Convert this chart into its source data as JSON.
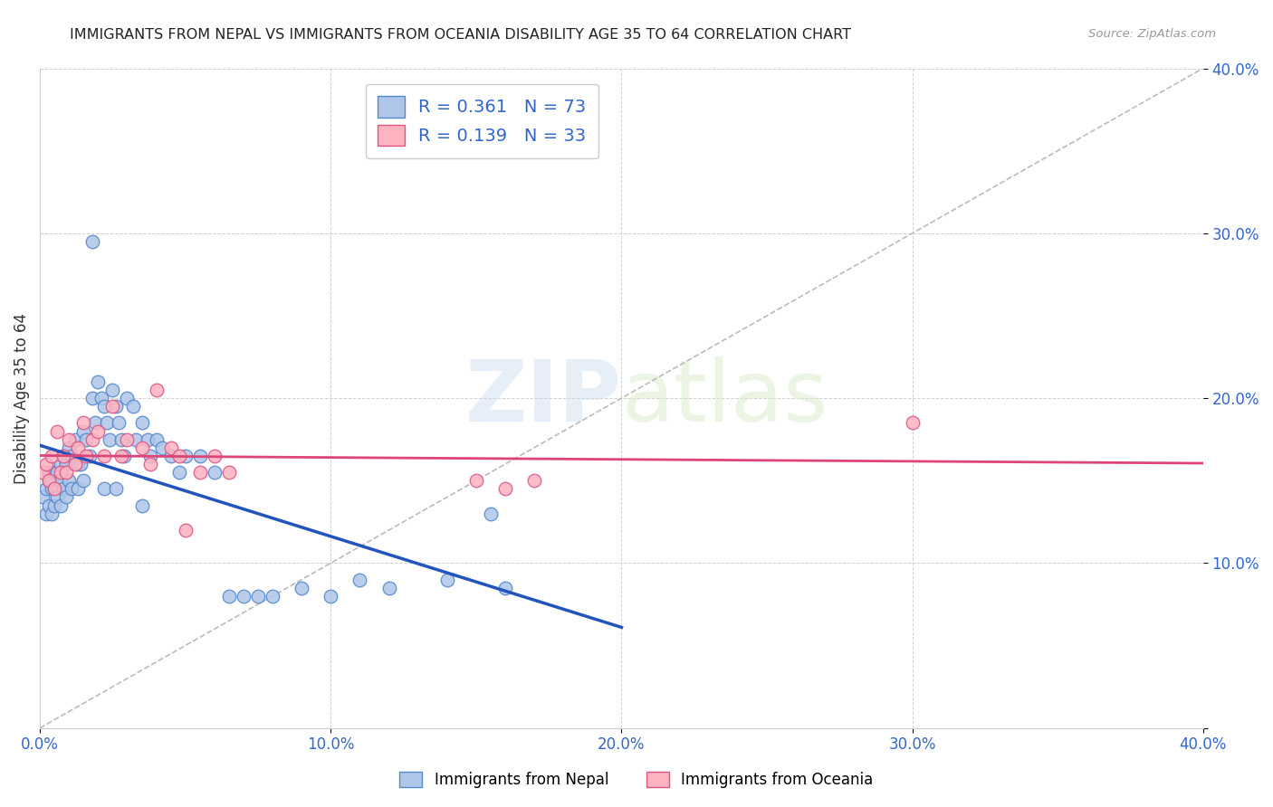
{
  "title": "IMMIGRANTS FROM NEPAL VS IMMIGRANTS FROM OCEANIA DISABILITY AGE 35 TO 64 CORRELATION CHART",
  "source": "Source: ZipAtlas.com",
  "ylabel": "Disability Age 35 to 64",
  "xlim": [
    0.0,
    0.4
  ],
  "ylim": [
    0.0,
    0.4
  ],
  "xticks": [
    0.0,
    0.1,
    0.2,
    0.3,
    0.4
  ],
  "yticks": [
    0.0,
    0.1,
    0.2,
    0.3,
    0.4
  ],
  "xticklabels": [
    "0.0%",
    "10.0%",
    "20.0%",
    "30.0%",
    "40.0%"
  ],
  "yticklabels": [
    "",
    "10.0%",
    "20.0%",
    "30.0%",
    "40.0%"
  ],
  "nepal_color": "#aec6e8",
  "nepal_edge_color": "#5588cc",
  "oceania_color": "#ffb3c1",
  "oceania_edge_color": "#e05580",
  "nepal_R": 0.361,
  "nepal_N": 73,
  "oceania_R": 0.139,
  "oceania_N": 33,
  "nepal_line_color": "#2255BB",
  "oceania_line_color": "#DD4477",
  "diagonal_color": "#BBBBBB",
  "watermark_zip": "ZIP",
  "watermark_atlas": "atlas",
  "legend_label_nepal": "Immigrants from Nepal",
  "legend_label_oceania": "Immigrants from Oceania",
  "nepal_x": [
    0.001,
    0.002,
    0.002,
    0.003,
    0.003,
    0.003,
    0.004,
    0.004,
    0.004,
    0.005,
    0.005,
    0.005,
    0.006,
    0.006,
    0.007,
    0.007,
    0.007,
    0.008,
    0.008,
    0.009,
    0.009,
    0.01,
    0.01,
    0.011,
    0.011,
    0.012,
    0.013,
    0.013,
    0.014,
    0.015,
    0.015,
    0.016,
    0.017,
    0.018,
    0.019,
    0.02,
    0.021,
    0.022,
    0.023,
    0.024,
    0.025,
    0.026,
    0.027,
    0.028,
    0.029,
    0.03,
    0.032,
    0.033,
    0.035,
    0.037,
    0.038,
    0.04,
    0.042,
    0.045,
    0.048,
    0.05,
    0.055,
    0.06,
    0.065,
    0.07,
    0.075,
    0.08,
    0.09,
    0.1,
    0.11,
    0.12,
    0.14,
    0.16,
    0.018,
    0.022,
    0.026,
    0.035,
    0.155
  ],
  "nepal_y": [
    0.14,
    0.145,
    0.13,
    0.15,
    0.155,
    0.135,
    0.145,
    0.15,
    0.13,
    0.155,
    0.145,
    0.135,
    0.155,
    0.14,
    0.16,
    0.15,
    0.135,
    0.165,
    0.145,
    0.16,
    0.14,
    0.17,
    0.15,
    0.165,
    0.145,
    0.175,
    0.16,
    0.145,
    0.16,
    0.18,
    0.15,
    0.175,
    0.165,
    0.2,
    0.185,
    0.21,
    0.2,
    0.195,
    0.185,
    0.175,
    0.205,
    0.195,
    0.185,
    0.175,
    0.165,
    0.2,
    0.195,
    0.175,
    0.185,
    0.175,
    0.165,
    0.175,
    0.17,
    0.165,
    0.155,
    0.165,
    0.165,
    0.155,
    0.08,
    0.08,
    0.08,
    0.08,
    0.085,
    0.08,
    0.09,
    0.085,
    0.09,
    0.085,
    0.295,
    0.145,
    0.145,
    0.135,
    0.13
  ],
  "oceania_x": [
    0.001,
    0.002,
    0.003,
    0.004,
    0.005,
    0.006,
    0.007,
    0.008,
    0.009,
    0.01,
    0.012,
    0.013,
    0.015,
    0.016,
    0.018,
    0.02,
    0.022,
    0.025,
    0.028,
    0.03,
    0.035,
    0.038,
    0.04,
    0.045,
    0.048,
    0.055,
    0.06,
    0.065,
    0.15,
    0.16,
    0.17,
    0.3,
    0.05
  ],
  "oceania_y": [
    0.155,
    0.16,
    0.15,
    0.165,
    0.145,
    0.18,
    0.155,
    0.165,
    0.155,
    0.175,
    0.16,
    0.17,
    0.185,
    0.165,
    0.175,
    0.18,
    0.165,
    0.195,
    0.165,
    0.175,
    0.17,
    0.16,
    0.205,
    0.17,
    0.165,
    0.155,
    0.165,
    0.155,
    0.15,
    0.145,
    0.15,
    0.185,
    0.12
  ]
}
